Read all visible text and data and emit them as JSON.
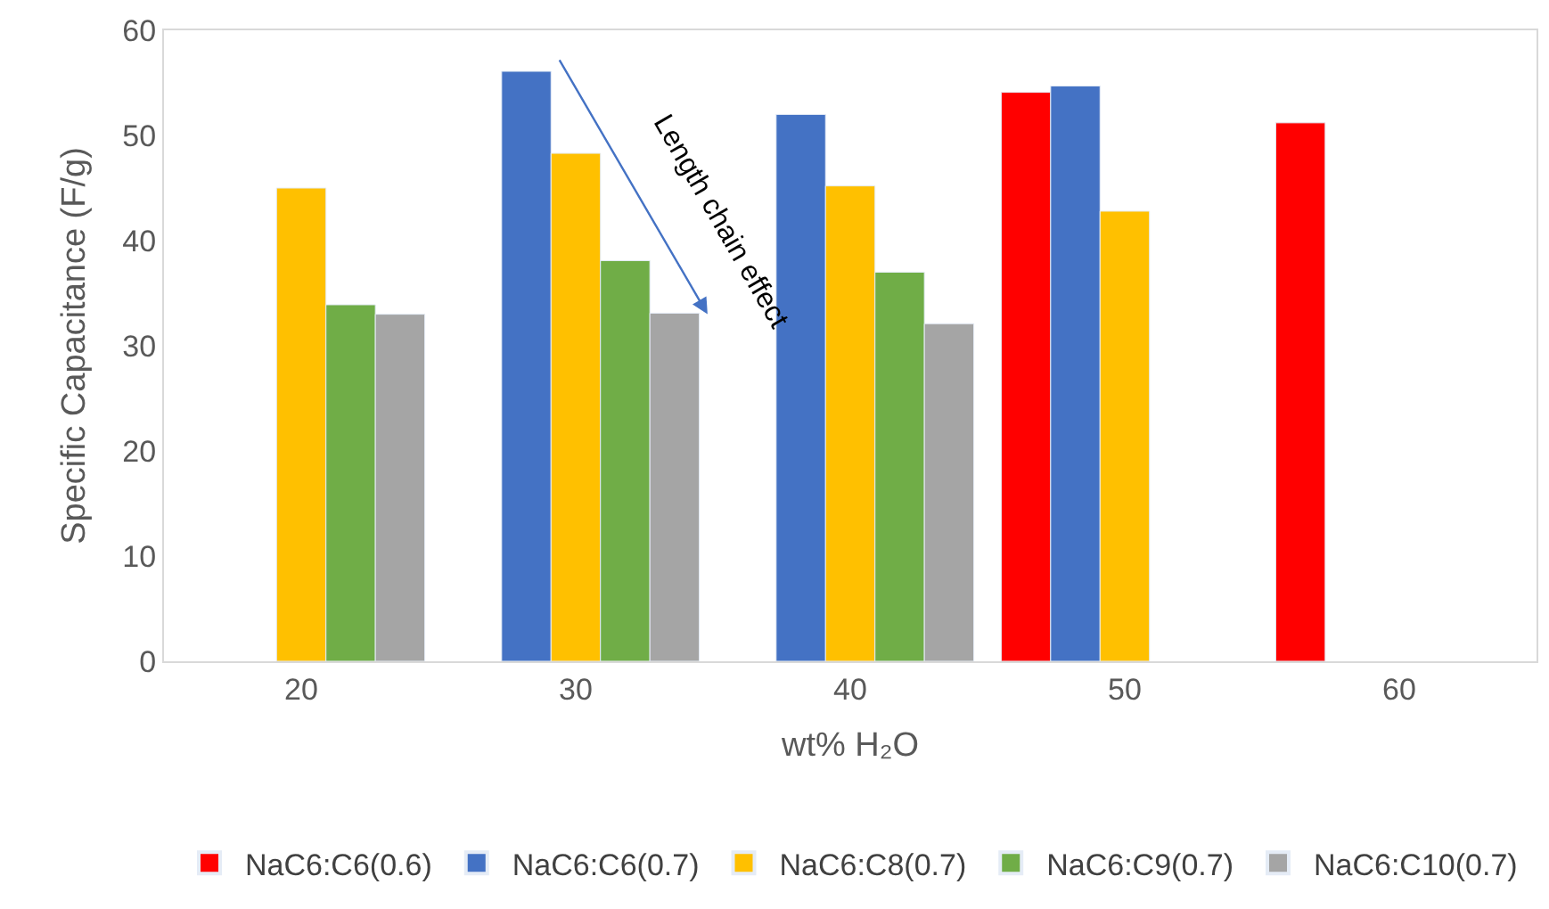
{
  "chart_data": {
    "type": "bar",
    "xlabel": "wt% H₂O",
    "ylabel": "Specific Capacitance (F/g)",
    "categories": [
      "20",
      "30",
      "40",
      "50",
      "60"
    ],
    "series": [
      {
        "name": "NaC6:C6(0.6)",
        "color": "#ff0000",
        "values": [
          null,
          null,
          null,
          54.1,
          51.2
        ]
      },
      {
        "name": "NaC6:C6(0.7)",
        "color": "#4472c4",
        "values": [
          null,
          56.1,
          52.0,
          54.7,
          null
        ]
      },
      {
        "name": "NaC6:C8(0.7)",
        "color": "#ffc000",
        "values": [
          45.0,
          48.3,
          45.2,
          42.8,
          null
        ]
      },
      {
        "name": "NaC6:C9(0.7)",
        "color": "#70ad47",
        "values": [
          33.9,
          38.1,
          37.0,
          null,
          null
        ]
      },
      {
        "name": "NaC6:C10(0.7)",
        "color": "#a5a5a5",
        "values": [
          33.0,
          33.1,
          32.1,
          null,
          null
        ]
      }
    ],
    "ylim": [
      0,
      60
    ],
    "yticks": [
      0,
      10,
      20,
      30,
      40,
      50,
      60
    ],
    "legend": "bottom",
    "annotations": [
      "Length chain effect"
    ]
  }
}
